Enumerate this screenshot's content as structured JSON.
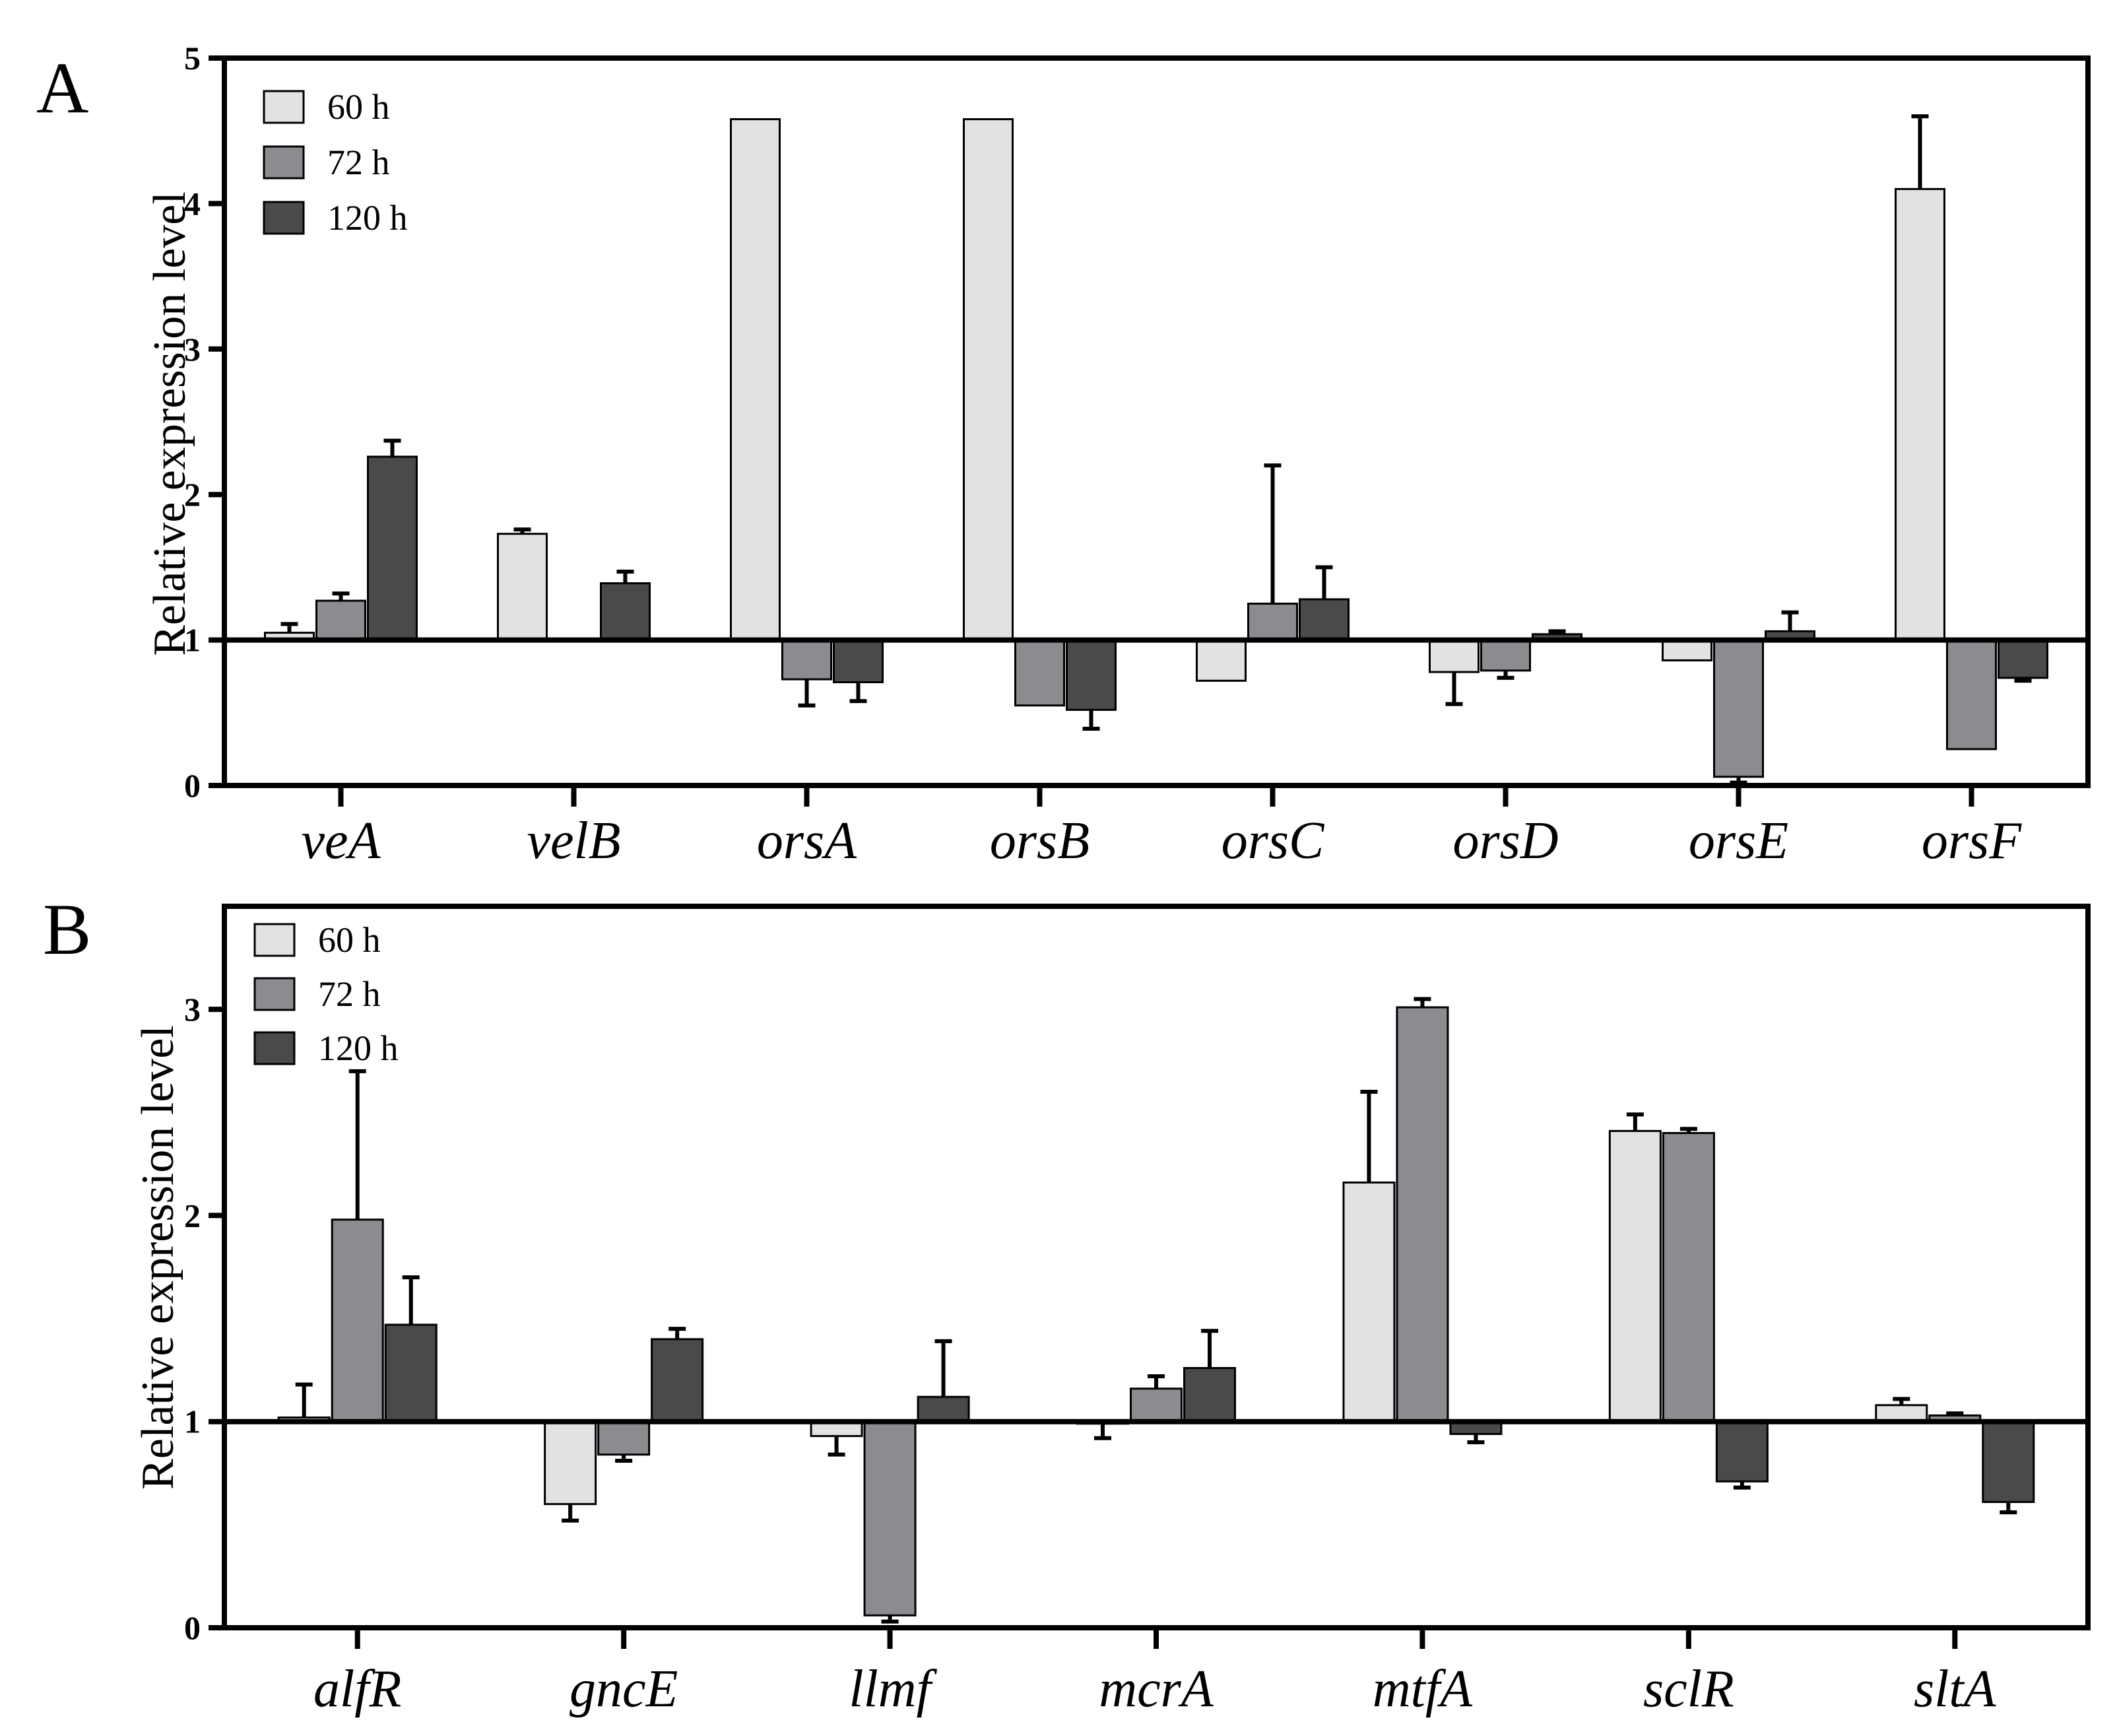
{
  "chart_data": [
    {
      "type": "bar",
      "panel": "A",
      "title": "",
      "xlabel": "",
      "ylabel": "Relative expression level",
      "ylim": [
        0,
        5
      ],
      "yticks": [
        0,
        1,
        2,
        3,
        4,
        5
      ],
      "baseline": 1,
      "legend_position": "top-left",
      "categories": [
        "veA",
        "velB",
        "orsA",
        "orsB",
        "orsC",
        "orsD",
        "orsE",
        "orsF"
      ],
      "series": [
        {
          "name": "60 h",
          "color": "#e2e2e2",
          "values": [
            1.05,
            1.73,
            4.58,
            4.58,
            0.72,
            0.78,
            0.86,
            4.1
          ],
          "errors": [
            0.06,
            0.03,
            0,
            0,
            0,
            0.22,
            0,
            0.5
          ]
        },
        {
          "name": "72 h",
          "color": "#8c8c90",
          "values": [
            1.27,
            0.99,
            0.73,
            0.55,
            1.25,
            0.79,
            0.06,
            0.25
          ],
          "errors": [
            0.05,
            0,
            0.18,
            0,
            0.95,
            0.05,
            0.04,
            0
          ]
        },
        {
          "name": "120 h",
          "color": "#4a4a4a",
          "values": [
            2.26,
            1.39,
            0.71,
            0.52,
            1.28,
            1.04,
            1.06,
            0.74
          ],
          "errors": [
            0.11,
            0.08,
            0.13,
            0.13,
            0.22,
            0.02,
            0.13,
            0.02
          ]
        }
      ]
    },
    {
      "type": "bar",
      "panel": "B",
      "title": "",
      "xlabel": "",
      "ylabel": "Relative expression level",
      "ylim": [
        0,
        3.5
      ],
      "yticks": [
        0,
        1,
        2,
        3
      ],
      "baseline": 1,
      "legend_position": "top-left",
      "categories": [
        "alfR",
        "gncE",
        "llmf",
        "mcrA",
        "mtfA",
        "sclR",
        "sltA"
      ],
      "series": [
        {
          "name": "60 h",
          "color": "#e2e2e2",
          "values": [
            1.02,
            0.6,
            0.93,
            0.99,
            2.16,
            2.41,
            1.08
          ],
          "errors": [
            0.16,
            0.08,
            0.09,
            0.07,
            0.44,
            0.08,
            0.03
          ]
        },
        {
          "name": "72 h",
          "color": "#8c8c90",
          "values": [
            1.98,
            0.84,
            0.06,
            1.16,
            3.01,
            2.4,
            1.03
          ],
          "errors": [
            0.72,
            0.03,
            0.03,
            0.06,
            0.04,
            0.02,
            0.01
          ]
        },
        {
          "name": "120 h",
          "color": "#4a4a4a",
          "values": [
            1.47,
            1.4,
            1.12,
            1.26,
            0.94,
            0.71,
            0.61
          ],
          "errors": [
            0.23,
            0.05,
            0.27,
            0.18,
            0.04,
            0.03,
            0.05
          ]
        }
      ]
    }
  ],
  "panels": {
    "A": {
      "letter": "A"
    },
    "B": {
      "letter": "B"
    }
  }
}
